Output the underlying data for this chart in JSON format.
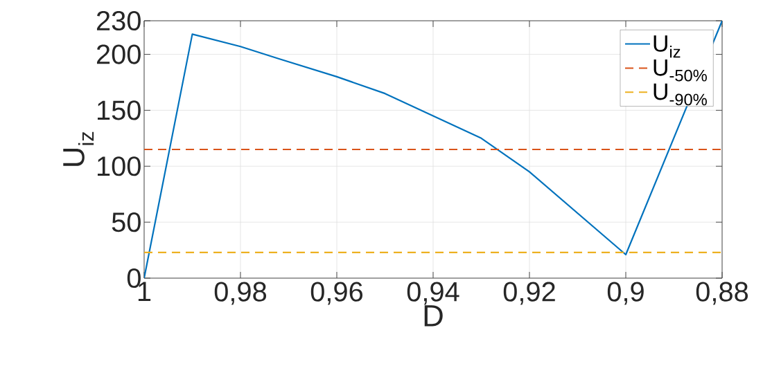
{
  "chart_data": {
    "type": "line",
    "xlabel": "D",
    "ylabel": "U$_{iz}$",
    "x": [
      1,
      0.99,
      0.98,
      0.972,
      0.96,
      0.95,
      0.93,
      0.92,
      0.9,
      0.88
    ],
    "series": [
      {
        "name": "U$_{iz}$",
        "color": "#0072bd",
        "values": [
          0,
          218,
          207,
          196,
          180,
          165,
          125,
          95,
          21,
          230
        ]
      }
    ],
    "ref_lines": [
      {
        "axis": "y",
        "value": 115,
        "label": "U$_{-50%}$",
        "color": "#d95319",
        "line_style": "dashed"
      },
      {
        "axis": "y",
        "value": 23,
        "label": "U$_{-90%}$",
        "color": "#edb120",
        "line_style": "dashed"
      }
    ],
    "xlim": [
      1,
      0.88
    ],
    "ylim": [
      0,
      230
    ],
    "xticks": [
      1,
      {
        "value": 0.98,
        "label": "0,98"
      },
      {
        "value": 0.96,
        "label": "0,96"
      },
      {
        "value": 0.94,
        "label": "0,94"
      },
      {
        "value": 0.92,
        "label": "0,92"
      },
      {
        "value": 0.9,
        "label": "0,9"
      },
      {
        "value": 0.88,
        "label": "0,88"
      }
    ],
    "yticks": [
      0,
      50,
      100,
      150,
      200,
      230
    ],
    "grid": true,
    "legend": "top right",
    "line_style": "solid",
    "marker": "none"
  }
}
